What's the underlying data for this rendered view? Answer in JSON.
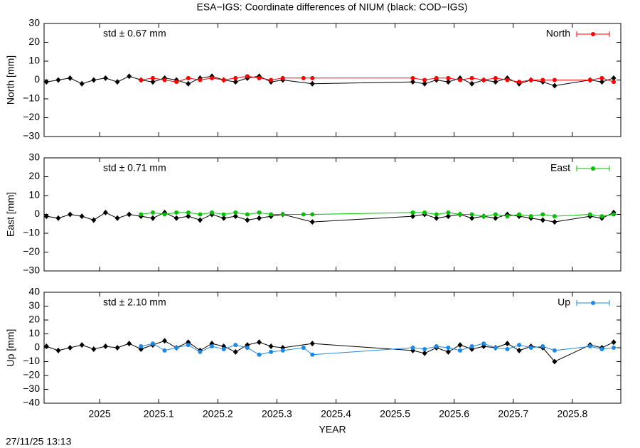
{
  "chart_data": [
    {
      "type": "line",
      "title": "ESA−IGS: Coordinate differences of NIUM (black: COD−IGS)",
      "ylabel": "North [mm]",
      "annotation": "std ± 0.67 mm",
      "xlim": [
        2024.906,
        2025.882
      ],
      "ylim": [
        -30,
        30
      ],
      "yticks": [
        {
          "value": -30,
          "label": "−30"
        },
        {
          "value": -20,
          "label": "−20"
        },
        {
          "value": -10,
          "label": "−10"
        },
        0,
        10,
        20,
        30
      ],
      "series": [
        {
          "color": "#000000",
          "x": [
            2024.91,
            2024.93,
            2024.95,
            2024.97,
            2024.99,
            2025.01,
            2025.03,
            2025.05,
            2025.07,
            2025.09,
            2025.11,
            2025.13,
            2025.15,
            2025.17,
            2025.19,
            2025.21,
            2025.23,
            2025.25,
            2025.27,
            2025.29,
            2025.31,
            2025.36,
            2025.53,
            2025.55,
            2025.57,
            2025.59,
            2025.61,
            2025.63,
            2025.65,
            2025.67,
            2025.69,
            2025.71,
            2025.73,
            2025.75,
            2025.77,
            2025.83,
            2025.85,
            2025.87
          ],
          "values": [
            -1,
            0,
            1,
            -2,
            0,
            1,
            -1,
            2,
            0,
            -1,
            1,
            0,
            -2,
            1,
            2,
            0,
            -1,
            1,
            2,
            -1,
            0,
            -2,
            -1,
            -2,
            0,
            -1,
            1,
            -2,
            0,
            -1,
            1,
            -2,
            0,
            -1,
            -3,
            0,
            -1,
            1
          ]
        },
        {
          "name": "North",
          "color": "#ff0000",
          "x": [
            2025.07,
            2025.09,
            2025.11,
            2025.13,
            2025.15,
            2025.17,
            2025.19,
            2025.21,
            2025.23,
            2025.25,
            2025.27,
            2025.29,
            2025.31,
            2025.345,
            2025.36,
            2025.53,
            2025.55,
            2025.57,
            2025.59,
            2025.61,
            2025.63,
            2025.65,
            2025.67,
            2025.69,
            2025.71,
            2025.73,
            2025.75,
            2025.77,
            2025.83,
            2025.85,
            2025.87
          ],
          "values": [
            0,
            1,
            0,
            -1,
            1,
            0,
            1,
            0,
            1,
            2,
            1,
            0,
            1,
            1,
            1,
            1,
            0,
            1,
            1,
            0,
            1,
            0,
            1,
            0,
            -1,
            0,
            0,
            0,
            0,
            1,
            -1
          ]
        }
      ]
    },
    {
      "type": "line",
      "ylabel": "East [mm]",
      "annotation": "std ± 0.71 mm",
      "xlim": [
        2024.906,
        2025.882
      ],
      "ylim": [
        -30,
        30
      ],
      "yticks": [
        {
          "value": -30,
          "label": "−30"
        },
        {
          "value": -20,
          "label": "−20"
        },
        {
          "value": -10,
          "label": "−10"
        },
        0,
        10,
        20,
        30
      ],
      "series": [
        {
          "color": "#000000",
          "x": [
            2024.91,
            2024.93,
            2024.95,
            2024.97,
            2024.99,
            2025.01,
            2025.03,
            2025.05,
            2025.07,
            2025.09,
            2025.11,
            2025.13,
            2025.15,
            2025.17,
            2025.19,
            2025.21,
            2025.23,
            2025.25,
            2025.27,
            2025.29,
            2025.31,
            2025.36,
            2025.53,
            2025.55,
            2025.57,
            2025.59,
            2025.61,
            2025.63,
            2025.65,
            2025.67,
            2025.69,
            2025.71,
            2025.73,
            2025.75,
            2025.77,
            2025.83,
            2025.85,
            2025.87
          ],
          "values": [
            -1,
            -2,
            0,
            -1,
            -3,
            1,
            -2,
            0,
            -1,
            -2,
            1,
            -2,
            -1,
            -3,
            0,
            -2,
            -1,
            -3,
            -2,
            -1,
            0,
            -4,
            -1,
            0,
            -2,
            -1,
            0,
            -2,
            -1,
            -2,
            0,
            -1,
            -2,
            -3,
            -4,
            -1,
            -2,
            1
          ]
        },
        {
          "name": "East",
          "color": "#00c000",
          "x": [
            2025.07,
            2025.09,
            2025.11,
            2025.13,
            2025.15,
            2025.17,
            2025.19,
            2025.21,
            2025.23,
            2025.25,
            2025.27,
            2025.29,
            2025.31,
            2025.345,
            2025.36,
            2025.53,
            2025.55,
            2025.57,
            2025.59,
            2025.61,
            2025.63,
            2025.65,
            2025.67,
            2025.69,
            2025.71,
            2025.73,
            2025.75,
            2025.77,
            2025.83,
            2025.85,
            2025.87
          ],
          "values": [
            0,
            1,
            0,
            1,
            1,
            0,
            1,
            0,
            1,
            0,
            1,
            0,
            0,
            0,
            0,
            1,
            1,
            0,
            1,
            0,
            0,
            -1,
            0,
            -1,
            0,
            -1,
            0,
            -1,
            0,
            -1,
            0
          ]
        }
      ]
    },
    {
      "type": "line",
      "ylabel": "Up [mm]",
      "xlabel": "YEAR",
      "annotation": "std ± 2.10 mm",
      "xlim": [
        2024.906,
        2025.882
      ],
      "ylim": [
        -40,
        40
      ],
      "xticks": [
        2025,
        2025.1,
        2025.2,
        2025.3,
        2025.4,
        2025.5,
        2025.6,
        2025.7,
        2025.8
      ],
      "yticks": [
        {
          "value": -40,
          "label": "−40"
        },
        {
          "value": -30,
          "label": "−30"
        },
        {
          "value": -20,
          "label": "−20"
        },
        {
          "value": -10,
          "label": "−10"
        },
        0,
        10,
        20,
        30,
        40
      ],
      "series": [
        {
          "color": "#000000",
          "x": [
            2024.91,
            2024.93,
            2024.95,
            2024.97,
            2024.99,
            2025.01,
            2025.03,
            2025.05,
            2025.07,
            2025.09,
            2025.11,
            2025.13,
            2025.15,
            2025.17,
            2025.19,
            2025.21,
            2025.23,
            2025.25,
            2025.27,
            2025.29,
            2025.31,
            2025.36,
            2025.53,
            2025.55,
            2025.57,
            2025.59,
            2025.61,
            2025.63,
            2025.65,
            2025.67,
            2025.69,
            2025.71,
            2025.73,
            2025.75,
            2025.77,
            2025.83,
            2025.85,
            2025.87
          ],
          "values": [
            1,
            -2,
            0,
            2,
            -1,
            1,
            0,
            3,
            -1,
            2,
            5,
            0,
            4,
            -2,
            3,
            1,
            -3,
            2,
            4,
            1,
            0,
            3,
            -2,
            -4,
            0,
            -3,
            2,
            -1,
            1,
            0,
            3,
            -2,
            1,
            0,
            -10,
            2,
            0,
            4
          ]
        },
        {
          "name": "Up",
          "color": "#1e88e5",
          "x": [
            2025.07,
            2025.09,
            2025.11,
            2025.13,
            2025.15,
            2025.17,
            2025.19,
            2025.21,
            2025.23,
            2025.25,
            2025.27,
            2025.29,
            2025.31,
            2025.345,
            2025.36,
            2025.53,
            2025.55,
            2025.57,
            2025.59,
            2025.61,
            2025.63,
            2025.65,
            2025.67,
            2025.69,
            2025.71,
            2025.73,
            2025.75,
            2025.77,
            2025.83,
            2025.85,
            2025.87
          ],
          "values": [
            1,
            3,
            -2,
            0,
            2,
            -3,
            1,
            -1,
            2,
            0,
            -5,
            -3,
            -2,
            0,
            -5,
            0,
            -1,
            1,
            0,
            -2,
            1,
            3,
            0,
            -1,
            2,
            0,
            1,
            -2,
            1,
            -1,
            0
          ]
        }
      ]
    }
  ],
  "footer": "27/11/25 13:13"
}
